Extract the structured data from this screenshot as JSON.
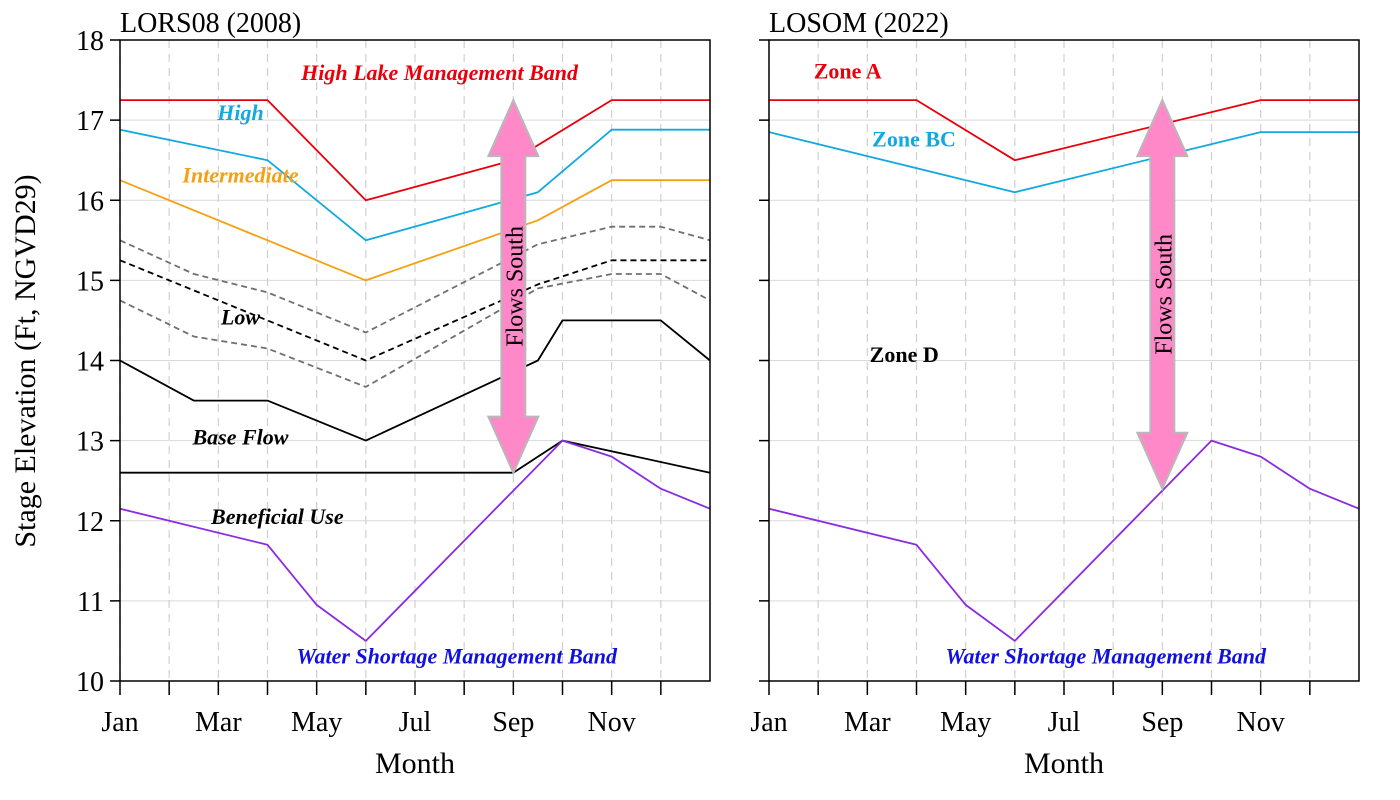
{
  "chart_data": {
    "type": "line",
    "ylabel": "Stage Elevation (Ft, NGVD29)",
    "ylim": [
      10,
      18
    ],
    "yticks": [
      "10",
      "11",
      "12",
      "13",
      "14",
      "15",
      "16",
      "17",
      "18"
    ],
    "xlim": [
      1,
      13
    ],
    "xticks": [
      {
        "label": "Jan",
        "value": 1
      },
      {
        "label": "Mar",
        "value": 3
      },
      {
        "label": "May",
        "value": 5
      },
      {
        "label": "Jul",
        "value": 7
      },
      {
        "label": "Sep",
        "value": 9
      },
      {
        "label": "Nov",
        "value": 11
      }
    ],
    "xminor": [
      2,
      4,
      6,
      8,
      10,
      12
    ],
    "xlabel": "Month",
    "grid": true,
    "panels": [
      {
        "title": "LORS08 (2008)",
        "arrow": {
          "label": "Flows South",
          "x": 9,
          "y_from": 12.6,
          "y_to": 17.25,
          "color": "#ff88c8"
        },
        "series": [
          {
            "name": "High Lake Management Band",
            "color": "#e8000b",
            "dash": false,
            "italic": true,
            "x": [
              1,
              4,
              6,
              9,
              11,
              13
            ],
            "y": [
              17.25,
              17.25,
              16.0,
              16.5,
              17.25,
              17.25
            ]
          },
          {
            "name": "High",
            "color": "#11a9e0",
            "dash": false,
            "italic": true,
            "x": [
              1,
              4,
              6,
              9.5,
              11,
              13
            ],
            "y": [
              16.88,
              16.5,
              15.5,
              16.1,
              16.88,
              16.88
            ]
          },
          {
            "name": "Intermediate",
            "color": "#f5a011",
            "dash": false,
            "italic": true,
            "x": [
              1,
              6,
              9.5,
              11,
              13
            ],
            "y": [
              16.25,
              15.0,
              15.75,
              16.25,
              16.25
            ]
          },
          {
            "name": "",
            "color": "#707070",
            "dash": true,
            "x": [
              1,
              2.5,
              4,
              6,
              9.5,
              11,
              12,
              13
            ],
            "y": [
              15.5,
              15.08,
              14.85,
              14.35,
              15.45,
              15.67,
              15.67,
              15.5
            ]
          },
          {
            "name": "",
            "color": "#000000",
            "dash": true,
            "x": [
              1,
              6,
              9.5,
              11,
              12,
              13
            ],
            "y": [
              15.25,
              14.0,
              14.95,
              15.25,
              15.25,
              15.25
            ]
          },
          {
            "name": "",
            "color": "#707070",
            "dash": true,
            "x": [
              1,
              2.5,
              4,
              6,
              9.5,
              11,
              12,
              13
            ],
            "y": [
              14.75,
              14.3,
              14.15,
              13.67,
              14.9,
              15.08,
              15.08,
              14.75
            ]
          },
          {
            "name": "Low",
            "color": "#000000",
            "dash": false,
            "italic": true,
            "x": [
              1,
              2.5,
              4,
              6,
              9.5,
              10,
              12,
              13
            ],
            "y": [
              14.0,
              13.5,
              13.5,
              13.0,
              14.0,
              14.5,
              14.5,
              14.0
            ]
          },
          {
            "name": "Base Flow",
            "color": "#000000",
            "dash": false,
            "italic": true,
            "x": [
              1,
              9,
              10,
              13
            ],
            "y": [
              12.6,
              12.6,
              13.0,
              12.6
            ]
          },
          {
            "name": "Beneficial Use",
            "color": "#8a2be2",
            "dash": false,
            "italic": true,
            "x": [
              1,
              4,
              5,
              6,
              10,
              11,
              12,
              13
            ],
            "y": [
              12.15,
              11.7,
              10.95,
              10.5,
              13.0,
              12.8,
              12.4,
              12.15
            ]
          }
        ],
        "labels": [
          {
            "text": "High Lake Management Band",
            "color": "#e8000b",
            "italic": true,
            "x": 7.5,
            "y": 17.5
          },
          {
            "text": "High",
            "color": "#11a9e0",
            "italic": true,
            "x": 3.45,
            "y": 17.0
          },
          {
            "text": "Intermediate",
            "color": "#f5a011",
            "italic": true,
            "x": 3.45,
            "y": 16.22
          },
          {
            "text": "Low",
            "color": "#000000",
            "italic": true,
            "x": 3.45,
            "y": 14.45
          },
          {
            "text": "Base Flow",
            "color": "#000000",
            "italic": true,
            "x": 3.45,
            "y": 12.95
          },
          {
            "text": "Beneficial Use",
            "color": "#000000",
            "italic": true,
            "x": 4.2,
            "y": 11.96
          },
          {
            "text": "Water Shortage Management Band",
            "color": "#1010e0",
            "italic": true,
            "x": 7.85,
            "y": 10.22
          }
        ]
      },
      {
        "title": "LOSOM (2022)",
        "arrow": {
          "label": "Flows South",
          "x": 9,
          "y_from": 12.4,
          "y_to": 17.25,
          "color": "#ff88c8"
        },
        "series": [
          {
            "name": "Zone A",
            "color": "#e8000b",
            "dash": false,
            "x": [
              1,
              4,
              6,
              11,
              13
            ],
            "y": [
              17.25,
              17.25,
              16.5,
              17.25,
              17.25
            ]
          },
          {
            "name": "Zone BC",
            "color": "#11a9e0",
            "dash": false,
            "x": [
              1,
              6,
              11,
              13
            ],
            "y": [
              16.85,
              16.1,
              16.85,
              16.85
            ]
          },
          {
            "name": "Zone D",
            "color": "#8a2be2",
            "dash": false,
            "x": [
              1,
              4,
              5,
              6,
              10,
              11,
              12,
              13
            ],
            "y": [
              12.15,
              11.7,
              10.95,
              10.5,
              13.0,
              12.8,
              12.4,
              12.15
            ]
          }
        ],
        "labels": [
          {
            "text": "Zone A",
            "color": "#e8000b",
            "italic": false,
            "x": 2.6,
            "y": 17.52
          },
          {
            "text": "Zone BC",
            "color": "#11a9e0",
            "italic": false,
            "x": 3.95,
            "y": 16.67
          },
          {
            "text": "Zone D",
            "color": "#000000",
            "italic": false,
            "x": 3.75,
            "y": 13.98
          },
          {
            "text": "Water Shortage Management Band",
            "color": "#1010e0",
            "italic": true,
            "x": 7.85,
            "y": 10.22
          }
        ]
      }
    ]
  }
}
